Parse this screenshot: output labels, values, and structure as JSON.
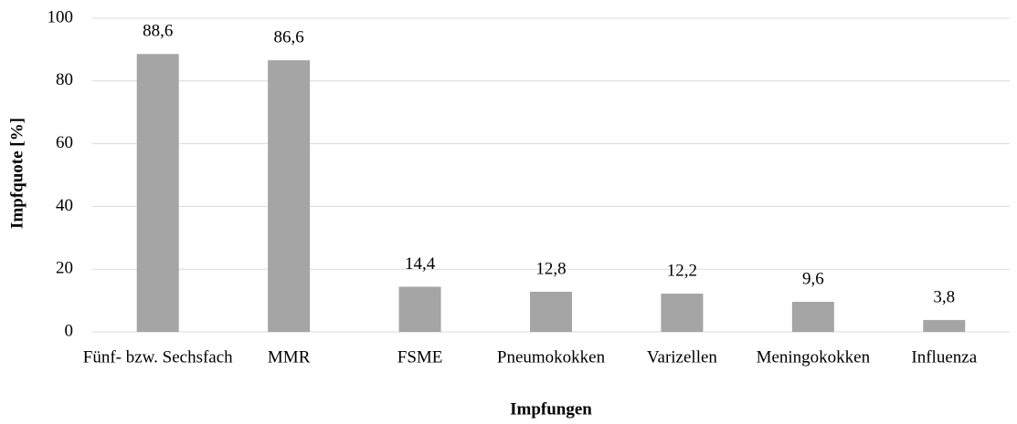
{
  "chart_data": {
    "type": "bar",
    "x_label": "Impfungen",
    "y_label": "Impfquote [%]",
    "categories": [
      "Fünf- bzw. Sechsfach",
      "MMR",
      "FSME",
      "Pneumokokken",
      "Varizellen",
      "Meningokokken",
      "Influenza"
    ],
    "values": [
      88.6,
      86.6,
      14.4,
      12.8,
      12.2,
      9.6,
      3.8
    ],
    "value_labels": [
      "88,6",
      "86,6",
      "14,4",
      "12,8",
      "12,2",
      "9,6",
      "3,8"
    ],
    "color": "#a5a5a5",
    "ylim": [
      0,
      100
    ],
    "yticks": [
      0,
      20,
      40,
      60,
      80,
      100
    ],
    "grid": true
  }
}
